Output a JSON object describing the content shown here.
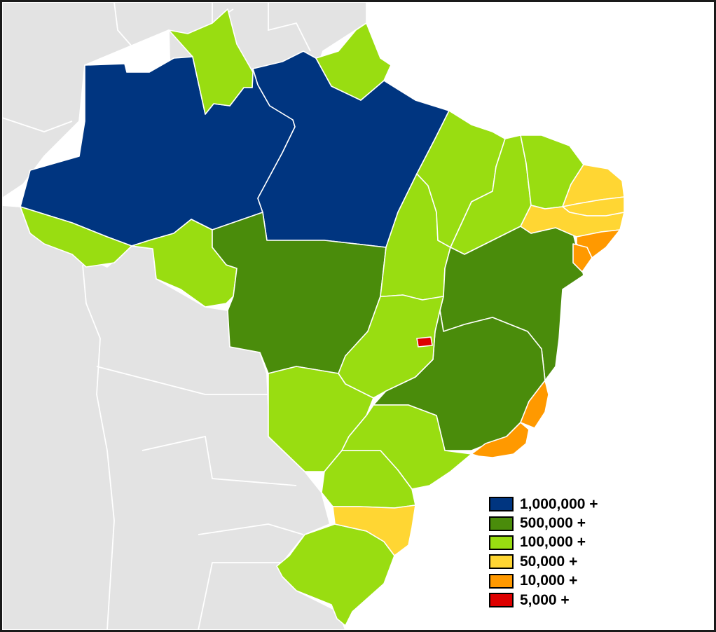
{
  "legend": {
    "items": [
      {
        "label": "1,000,000 +",
        "color": "#003580"
      },
      {
        "label": "500,000 +",
        "color": "#4a8c0b"
      },
      {
        "label": "100,000 +",
        "color": "#99dd11"
      },
      {
        "label": "50,000 +",
        "color": "#ffd633"
      },
      {
        "label": "10,000 +",
        "color": "#ff9900"
      },
      {
        "label": "5,000 +",
        "color": "#dd0000"
      }
    ]
  },
  "colors": {
    "neighbor_countries": "#e3e3e3",
    "ocean": "#ffffff",
    "border": "#1a1a1a"
  },
  "regions": [
    {
      "id": "amazonas",
      "class": 0
    },
    {
      "id": "para",
      "class": 0
    },
    {
      "id": "roraima",
      "class": 2
    },
    {
      "id": "amapa",
      "class": 2
    },
    {
      "id": "acre",
      "class": 2
    },
    {
      "id": "rondonia",
      "class": 2
    },
    {
      "id": "mato-grosso",
      "class": 1
    },
    {
      "id": "tocantins",
      "class": 2
    },
    {
      "id": "maranhao",
      "class": 2
    },
    {
      "id": "piaui",
      "class": 2
    },
    {
      "id": "ceara",
      "class": 2
    },
    {
      "id": "bahia",
      "class": 1
    },
    {
      "id": "minas-gerais",
      "class": 1
    },
    {
      "id": "goias",
      "class": 2
    },
    {
      "id": "mato-grosso-do-sul",
      "class": 2
    },
    {
      "id": "sao-paulo",
      "class": 2
    },
    {
      "id": "parana",
      "class": 2
    },
    {
      "id": "rio-grande-do-sul",
      "class": 2
    },
    {
      "id": "santa-catarina",
      "class": 3
    },
    {
      "id": "rio-grande-do-norte",
      "class": 3
    },
    {
      "id": "paraiba",
      "class": 3
    },
    {
      "id": "pernambuco",
      "class": 3
    },
    {
      "id": "alagoas",
      "class": 4
    },
    {
      "id": "sergipe",
      "class": 4
    },
    {
      "id": "espirito-santo",
      "class": 4
    },
    {
      "id": "rio-de-janeiro",
      "class": 4
    },
    {
      "id": "distrito-federal",
      "class": 5
    }
  ]
}
